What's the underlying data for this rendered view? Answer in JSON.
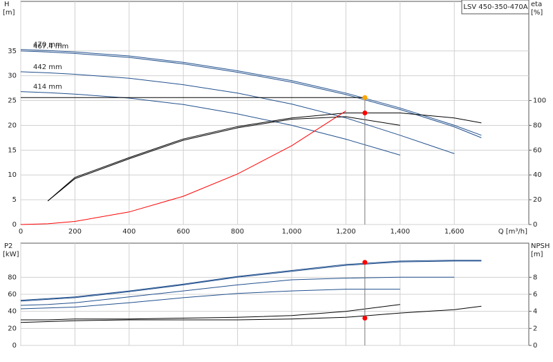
{
  "chart_data": [
    {
      "type": "line",
      "annotation": "LSV 450-350-470A",
      "y_label": "H",
      "y_unit": "[m]",
      "y2_label": "eta",
      "y2_unit": "[%]",
      "x_label": "Q [m³/h]",
      "x": [
        0,
        100,
        200,
        400,
        600,
        800,
        1000,
        1200,
        1400,
        1600,
        1700
      ],
      "xlim": [
        0,
        1875
      ],
      "xticks": [
        0,
        200,
        400,
        600,
        800,
        {
          "value": 1000,
          "label": "1,000"
        },
        {
          "value": 1200,
          "label": "1,200"
        },
        {
          "value": 1400,
          "label": "1,400"
        },
        {
          "value": 1600,
          "label": "1,600"
        }
      ],
      "ylim": [
        0,
        45
      ],
      "yticks": [
        0,
        5,
        10,
        15,
        20,
        25,
        30,
        35
      ],
      "y2lim": [
        0,
        180
      ],
      "y2ticks": [
        0,
        20,
        40,
        60,
        80,
        100
      ],
      "grid": true,
      "series": [
        {
          "name": "470 mm",
          "color": "#1f4e8c",
          "values": [
            35.3,
            35.1,
            34.8,
            34.0,
            32.7,
            31.0,
            29.0,
            26.5,
            23.5,
            20.0,
            18.0
          ]
        },
        {
          "name": "467.4 mm",
          "color": "#1f4e8c",
          "values": [
            35.0,
            34.8,
            34.5,
            33.7,
            32.4,
            30.7,
            28.7,
            26.2,
            23.2,
            19.7,
            17.5
          ]
        },
        {
          "name": "442 mm",
          "color": "#1f4e8c",
          "values": [
            30.8,
            30.6,
            30.3,
            29.5,
            28.2,
            26.5,
            24.3,
            21.5,
            18.0,
            14.3,
            null
          ]
        },
        {
          "name": "414 mm",
          "color": "#1f4e8c",
          "values": [
            26.8,
            26.6,
            26.3,
            25.5,
            24.2,
            22.3,
            20.0,
            17.2,
            14.0,
            null,
            null
          ]
        },
        {
          "color": "#000000",
          "axis": "y2",
          "values": [
            null,
            19,
            38,
            54,
            69,
            79,
            86,
            90,
            90,
            86,
            82
          ]
        },
        {
          "color": "#000000",
          "axis": "y2",
          "values": [
            null,
            19,
            37,
            53,
            68,
            78,
            85,
            87,
            80,
            null,
            null
          ]
        },
        {
          "color": "#ff0000",
          "values": [
            0,
            0.16,
            0.63,
            2.54,
            5.7,
            10.2,
            15.9,
            22.9,
            null,
            null,
            null
          ]
        }
      ],
      "operating_point": {
        "x": 1270,
        "values": [
          25.6,
          90
        ],
        "colors": [
          "#ffa500",
          "#ff0000"
        ]
      }
    },
    {
      "type": "line",
      "y_label": "P2",
      "y_unit": "[kW]",
      "y2_label": "NPSH",
      "y2_unit": "[m]",
      "x": [
        0,
        100,
        200,
        400,
        600,
        800,
        1000,
        1200,
        1400,
        1600,
        1700
      ],
      "xlim": [
        0,
        1875
      ],
      "xticks": [
        0,
        200,
        400,
        600,
        800,
        1000,
        1200,
        1400,
        1600
      ],
      "ylim": [
        0,
        120
      ],
      "yticks": [
        0,
        20,
        40,
        60,
        80
      ],
      "y2lim": [
        0,
        12
      ],
      "y2ticks": [
        0,
        2,
        4,
        6,
        8
      ],
      "grid": true,
      "x_tick_labels": false,
      "series": [
        {
          "color": "#1f4e8c",
          "values": [
            53,
            55,
            57,
            64,
            72,
            81,
            88,
            95,
            99,
            100,
            100
          ]
        },
        {
          "color": "#1f4e8c",
          "values": [
            52,
            54,
            56,
            63,
            71,
            80,
            87,
            94,
            98,
            99,
            99
          ]
        },
        {
          "color": "#1f4e8c",
          "values": [
            47,
            48,
            50,
            57,
            64,
            71,
            77,
            79,
            80,
            80,
            null
          ]
        },
        {
          "color": "#1f4e8c",
          "values": [
            43,
            44,
            45,
            50,
            56,
            61,
            64,
            66,
            66,
            null,
            null
          ]
        },
        {
          "color": "#000000",
          "axis": "y2",
          "values": [
            2.7,
            2.8,
            2.9,
            3.0,
            3.0,
            3.0,
            3.1,
            3.3,
            3.8,
            4.2,
            4.6
          ]
        },
        {
          "color": "#000000",
          "axis": "y2",
          "values": [
            3.0,
            3.0,
            3.1,
            3.1,
            3.2,
            3.3,
            3.5,
            4.0,
            4.8,
            null,
            null
          ]
        }
      ],
      "operating_point": {
        "x": 1270,
        "values": [
          97.5,
          3.2
        ],
        "colors": [
          "#ff0000",
          "#ff0000"
        ]
      }
    }
  ]
}
